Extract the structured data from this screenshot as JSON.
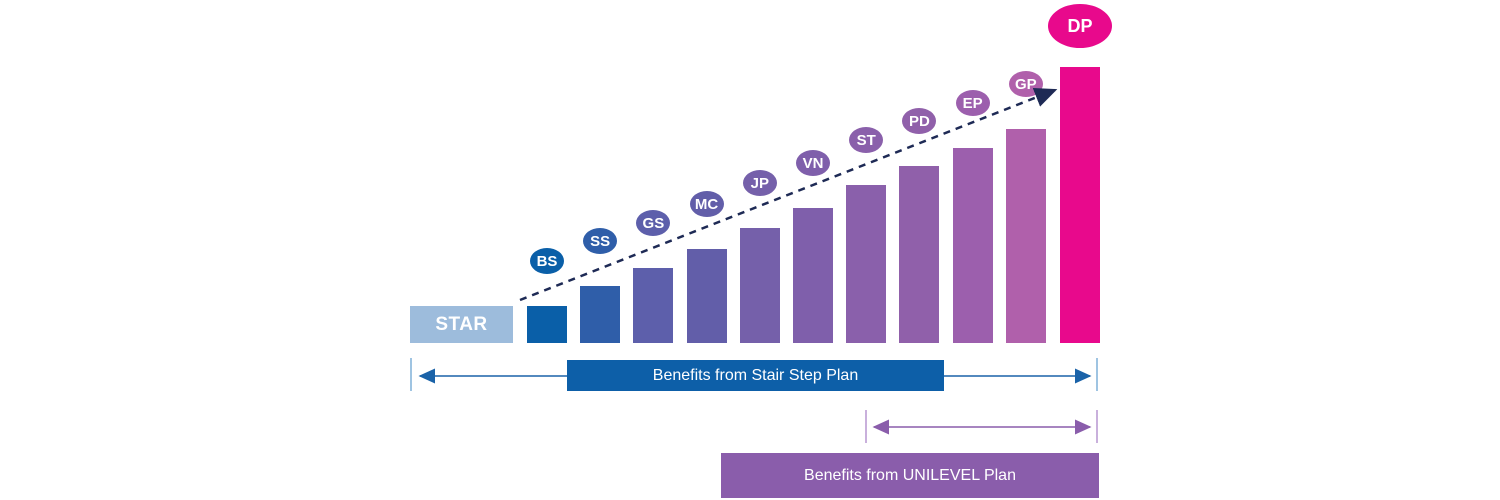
{
  "start_label": "STAR",
  "steps": [
    {
      "label": "BS",
      "level": 1,
      "color": "#0a5fa8"
    },
    {
      "label": "SS",
      "level": 2,
      "color": "#2f5ea9"
    },
    {
      "label": "GS",
      "level": 3,
      "color": "#5d5fab"
    },
    {
      "label": "MC",
      "level": 4,
      "color": "#625ea9"
    },
    {
      "label": "JP",
      "level": 5,
      "color": "#7560aa"
    },
    {
      "label": "VN",
      "level": 6,
      "color": "#7f5fab"
    },
    {
      "label": "ST",
      "level": 7,
      "color": "#8a60ab"
    },
    {
      "label": "PD",
      "level": 8,
      "color": "#9060aa"
    },
    {
      "label": "EP",
      "level": 9,
      "color": "#9c5fad"
    },
    {
      "label": "GP",
      "level": 10,
      "color": "#b060ab"
    },
    {
      "label": "DP",
      "level": 11,
      "color": "#e8098c"
    }
  ],
  "banners": {
    "stair_step": "Benefits from Stair Step Plan",
    "unilevel": "Benefits from UNILEVEL Plan"
  },
  "colors": {
    "star": "#9dbcdc",
    "stair_banner": "#0d5fa8",
    "unilevel_banner": "#8a5dab",
    "arrow_blue": "#1a62a8",
    "arrow_purple": "#8a5dab",
    "dashed_arrow": "#1e2a55"
  }
}
